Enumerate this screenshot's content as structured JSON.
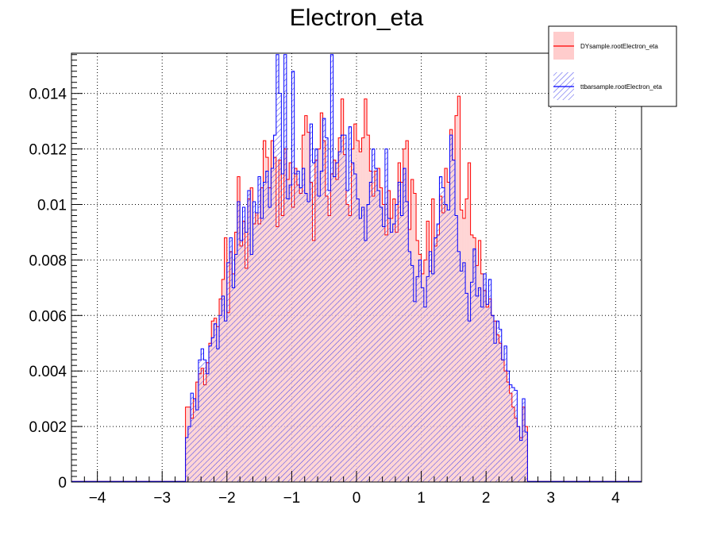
{
  "chart_data": {
    "type": "bar",
    "title": "Electron_eta",
    "xlabel": "",
    "ylabel": "",
    "xlim": [
      -4.4,
      4.4
    ],
    "ylim": [
      0,
      0.01545
    ],
    "grid": true,
    "legend_position": "top-right",
    "bin_width": 0.04,
    "x_start": -2.64,
    "x_ticks": [
      -4,
      -3,
      -2,
      -1,
      0,
      1,
      2,
      3,
      4
    ],
    "x_tick_labels": [
      "−4",
      "−3",
      "−2",
      "−1",
      "0",
      "1",
      "2",
      "3",
      "4"
    ],
    "y_ticks": [
      0,
      0.002,
      0.004,
      0.006,
      0.008,
      0.01,
      0.012,
      0.014
    ],
    "y_tick_labels": [
      "0",
      "0.002",
      "0.004",
      "0.006",
      "0.008",
      "0.01",
      "0.012",
      "0.014"
    ],
    "series": [
      {
        "name": "DYsample.rootElectron_eta",
        "color": "#ff0000",
        "fill": "#ffcccc",
        "values": [
          0.0027,
          0.0027,
          0.0023,
          0.003,
          0.0036,
          0.0039,
          0.0041,
          0.0035,
          0.0043,
          0.005,
          0.0058,
          0.0059,
          0.0056,
          0.0066,
          0.0073,
          0.0088,
          0.0061,
          0.0083,
          0.0075,
          0.009,
          0.011,
          0.0085,
          0.0094,
          0.0077,
          0.0102,
          0.0106,
          0.0093,
          0.0097,
          0.0093,
          0.0106,
          0.0123,
          0.0117,
          0.0106,
          0.0123,
          0.0117,
          0.0092,
          0.0116,
          0.0096,
          0.012,
          0.0109,
          0.0115,
          0.0099,
          0.0113,
          0.0107,
          0.0104,
          0.0125,
          0.0132,
          0.0126,
          0.0108,
          0.0087,
          0.0116,
          0.012,
          0.0133,
          0.0123,
          0.0103,
          0.0096,
          0.0111,
          0.0116,
          0.0109,
          0.0124,
          0.0138,
          0.0118,
          0.01,
          0.0096,
          0.012,
          0.0129,
          0.0123,
          0.0119,
          0.0124,
          0.0138,
          0.0125,
          0.0112,
          0.0103,
          0.0112,
          0.0113,
          0.0106,
          0.01,
          0.0089,
          0.0105,
          0.0095,
          0.0102,
          0.009,
          0.0115,
          0.0108,
          0.012,
          0.0123,
          0.0091,
          0.0109,
          0.0104,
          0.0087,
          0.0082,
          0.0075,
          0.008,
          0.0094,
          0.0076,
          0.0102,
          0.0085,
          0.0089,
          0.0103,
          0.0097,
          0.0113,
          0.0108,
          0.0127,
          0.0116,
          0.0132,
          0.0139,
          0.0098,
          0.0095,
          0.0102,
          0.0115,
          0.0089,
          0.0088,
          0.0078,
          0.0087,
          0.0075,
          0.0069,
          0.0063,
          0.0066,
          0.006,
          0.0058,
          0.0053,
          0.005,
          0.0044,
          0.004,
          0.0036,
          0.0032,
          0.0027,
          0.0023,
          0.002,
          0.0016,
          0.0027,
          0.002
        ]
      },
      {
        "name": "ttbarsample.rootElectron_eta",
        "color": "#0000ff",
        "fill": "#7777ff",
        "values": [
          0.0016,
          0.002,
          0.0032,
          0.003,
          0.0026,
          0.0044,
          0.0048,
          0.0044,
          0.0039,
          0.0049,
          0.0052,
          0.0057,
          0.0048,
          0.006,
          0.0067,
          0.0058,
          0.0079,
          0.0088,
          0.007,
          0.0082,
          0.0101,
          0.0087,
          0.0099,
          0.009,
          0.0105,
          0.0082,
          0.0101,
          0.0097,
          0.011,
          0.0095,
          0.0108,
          0.0112,
          0.0099,
          0.0113,
          0.0125,
          0.0154,
          0.014,
          0.0111,
          0.0154,
          0.0102,
          0.0107,
          0.0148,
          0.0111,
          0.0112,
          0.0106,
          0.0113,
          0.0104,
          0.0101,
          0.0129,
          0.0115,
          0.012,
          0.0103,
          0.0112,
          0.0131,
          0.0124,
          0.0105,
          0.0154,
          0.011,
          0.0115,
          0.0119,
          0.0125,
          0.0125,
          0.0105,
          0.0128,
          0.0115,
          0.0111,
          0.0102,
          0.0095,
          0.0099,
          0.0087,
          0.01,
          0.0108,
          0.012,
          0.0113,
          0.0105,
          0.0099,
          0.0092,
          0.012,
          0.0095,
          0.009,
          0.0093,
          0.01,
          0.0108,
          0.0096,
          0.0113,
          0.0101,
          0.0083,
          0.0078,
          0.0065,
          0.0074,
          0.008,
          0.007,
          0.0063,
          0.0074,
          0.0083,
          0.0075,
          0.0088,
          0.0093,
          0.011,
          0.0106,
          0.01,
          0.0098,
          0.0125,
          0.0116,
          0.0096,
          0.0083,
          0.0076,
          0.0079,
          0.0068,
          0.0058,
          0.0072,
          0.0084,
          0.0067,
          0.007,
          0.0063,
          0.0075,
          0.0064,
          0.0073,
          0.006,
          0.005,
          0.0058,
          0.0055,
          0.0044,
          0.0049,
          0.004,
          0.0035,
          0.0034,
          0.0033,
          0.002,
          0.0015,
          0.003,
          0.0018
        ]
      }
    ]
  }
}
